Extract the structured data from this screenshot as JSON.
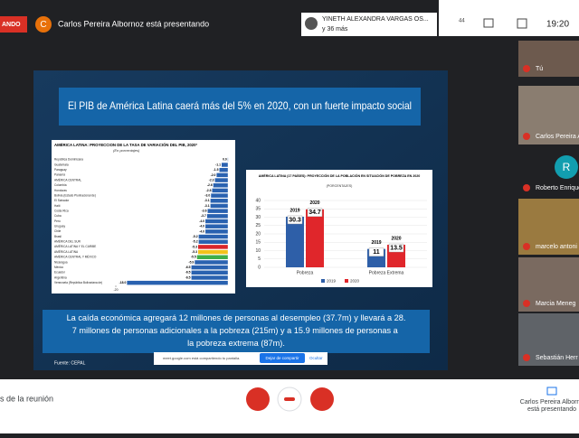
{
  "top_bar": {
    "presenting_badge": "ANDO",
    "presenter_initial": "C",
    "presenter_text": "Carlos Pereira Albornoz está presentando",
    "speaker": "YINETH ALEXANDRA VARGAS OS...",
    "others": "y 36 más",
    "people_count": "44",
    "time": "19:20"
  },
  "slide": {
    "title": "El PIB de América Latina  caerá más del 5% en 2020, con un fuerte impacto social",
    "gdp_chart": {
      "type": "bar",
      "orientation": "horizontal",
      "title": "AMÉRICA LATINA: PROYECCION DE LA TASA DE VARIACIÓN DEL PIB, 2020ª",
      "subtitle": "(En porcentajes)",
      "categories": [
        "República Dominicana",
        "Guatemala",
        "Paraguay",
        "Panamá",
        "AMÉRICA CENTRAL",
        "Colombia",
        "Honduras",
        "Bolivia (Estado Plurinacional de)",
        "El Salvador",
        "Haití",
        "Costa Rica",
        "Cuba",
        "Perú",
        "Uruguay",
        "Chile",
        "Brasil",
        "AMÉRICA DEL SUR",
        "AMÉRICA LATINA Y EL CARIBE",
        "AMÉRICA LATINA",
        "AMÉRICA CENTRAL Y MÉXICO",
        "Nicaragua",
        "México",
        "Ecuador",
        "Argentina",
        "Venezuela (República Bolivariana de)"
      ],
      "values": [
        0,
        -1.1,
        -1.5,
        -2.0,
        -2.3,
        -2.6,
        -2.8,
        -3.0,
        -3.1,
        -3.1,
        -3.6,
        -3.7,
        -4.0,
        -4.0,
        -4.0,
        -5.2,
        -5.2,
        -5.3,
        -5.3,
        -5.5,
        -5.9,
        -6.5,
        -6.5,
        -6.5,
        -18.0
      ],
      "value_labels": [
        "0.0",
        "-1.1",
        "-1.5",
        "-2.0",
        "-2.3",
        "-2.6",
        "-2.8",
        "-3.0",
        "-3.1",
        "-3.1",
        "-3.6",
        "-3.7",
        "-4.0",
        "-4.0",
        "-4.0",
        "-5.2",
        "-5.2",
        "-5.3",
        "-5.3",
        "-5.5",
        "-5.9",
        "-6.5",
        "-6.5",
        "-6.5",
        "-18.0"
      ],
      "colors": [
        "#2a62b0",
        "#2a62b0",
        "#2a62b0",
        "#2a62b0",
        "#2a62b0",
        "#2a62b0",
        "#2a62b0",
        "#2a62b0",
        "#2a62b0",
        "#2a62b0",
        "#2a62b0",
        "#2a62b0",
        "#2a62b0",
        "#2a62b0",
        "#2a62b0",
        "#2a62b0",
        "#2a62b0",
        "#d9262b",
        "#f2c21b",
        "#3fae49",
        "#2a62b0",
        "#2a62b0",
        "#2a62b0",
        "#2a62b0",
        "#2a62b0"
      ],
      "xlim": [
        -20,
        1
      ],
      "xticks": [
        -20
      ]
    },
    "poverty_chart": {
      "type": "bar",
      "title": "AMÉRICA LATINA (17 PAÍSES): PROYECCIÓN DE LA POBLACIÓN EN SITUACIÓN DE POBREZA EN 2020",
      "subtitle": "(PORCENTAJES)",
      "categories": [
        "Pobreza",
        "Pobreza Extrema"
      ],
      "series": [
        {
          "name": "2019",
          "color": "#2e5fa8",
          "values": [
            30.3,
            11
          ]
        },
        {
          "name": "2020",
          "color": "#e0262b",
          "values": [
            34.7,
            13.5
          ]
        }
      ],
      "ylim": [
        0,
        40
      ],
      "yticks": [
        0,
        5,
        10,
        15,
        20,
        25,
        30,
        35,
        40
      ],
      "legend": "bottom"
    },
    "text": "La caída económica agregará 12 millones de personas al desempleo (37.7m) y llevará a 28.7 millones de personas adicionales a la pobreza (215m) y a 15.9 millones de personas a la pobreza extrema (87m).",
    "source": "Fuente: CEPAL",
    "share_bar": {
      "message": "meet.google.com está compartiendo tu pantalla.",
      "stop": "Dejar de compartir",
      "hide": "Ocultar"
    }
  },
  "participants": [
    {
      "name": "Tú"
    },
    {
      "name": "Carlos Pereira Alb"
    },
    {
      "name": "Roberto Enrique",
      "initial": "R"
    },
    {
      "name": "marcelo antoni"
    },
    {
      "name": "Marcia Meneg"
    },
    {
      "name": "Sebastián Herr"
    }
  ],
  "bottom_bar": {
    "details": "s de la reunión",
    "presenting_line1": "Carlos Pereira Alborno",
    "presenting_line2": "está presentando"
  }
}
